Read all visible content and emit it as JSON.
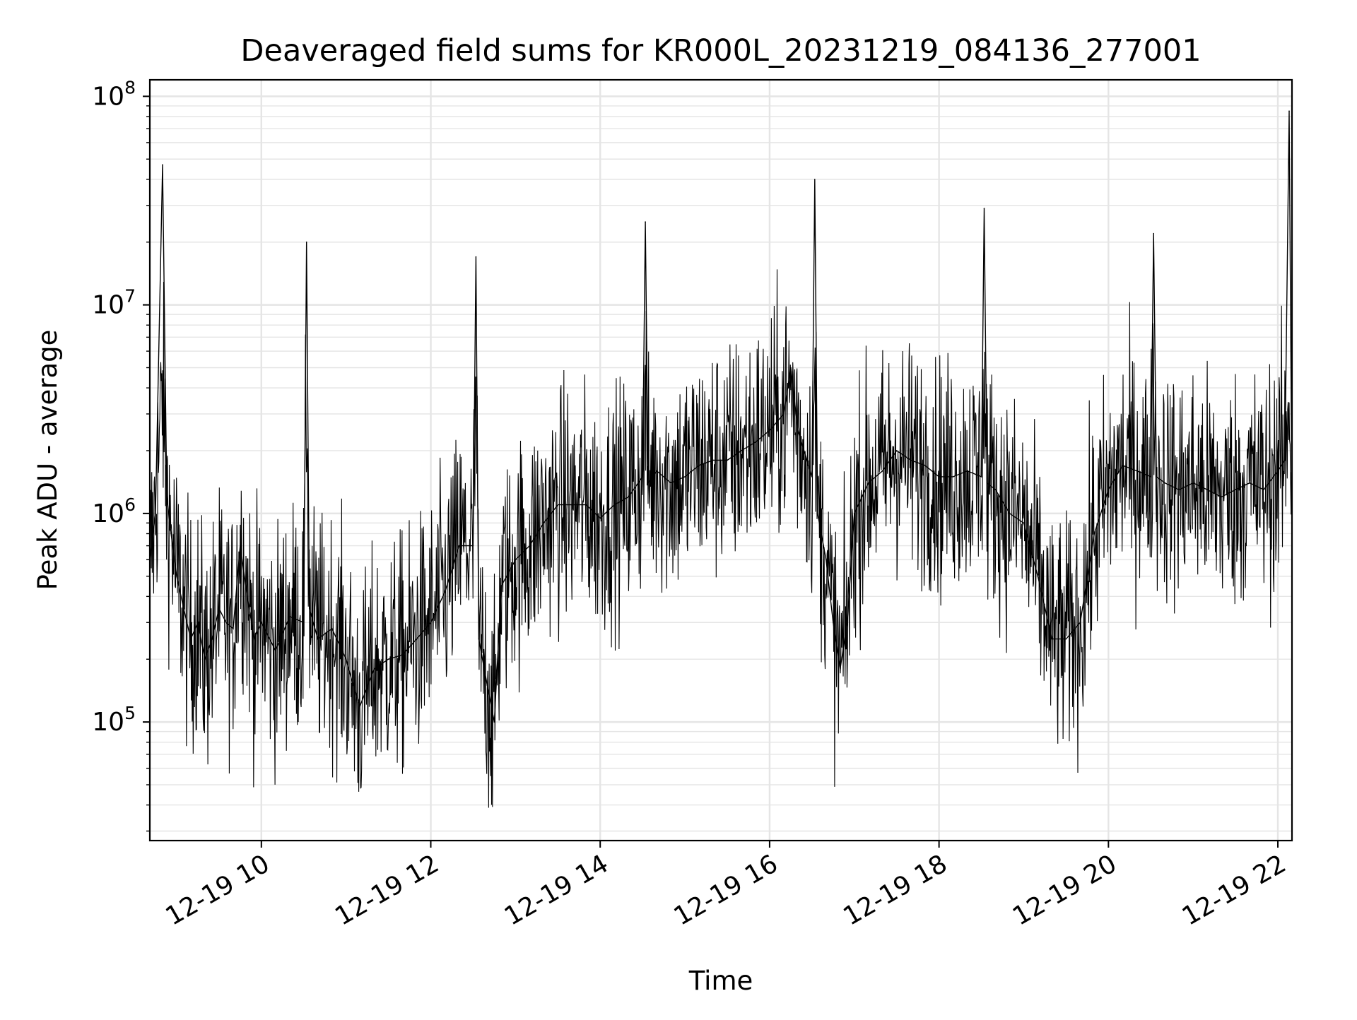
{
  "chart_data": {
    "type": "line",
    "title": "Deaveraged field sums for KR000L_20231219_084136_277001",
    "xlabel": "Time",
    "ylabel": "Peak ADU - average",
    "x_scale": "time",
    "y_scale": "log",
    "grid": true,
    "legend": "none",
    "xlim": [
      "2023-12-19 08:41",
      "2023-12-19 22:10"
    ],
    "ylim": [
      27000,
      120000000
    ],
    "x_ticks": [
      "2023-12-19 10:00",
      "2023-12-19 12:00",
      "2023-12-19 14:00",
      "2023-12-19 16:00",
      "2023-12-19 18:00",
      "2023-12-19 20:00",
      "2023-12-19 22:00"
    ],
    "x_tick_labels": [
      "12-19 10",
      "12-19 12",
      "12-19 14",
      "12-19 16",
      "12-19 18",
      "12-19 20",
      "12-19 22"
    ],
    "y_ticks": [
      100000,
      1000000,
      10000000,
      100000000
    ],
    "y_tick_labels": [
      {
        "base": "10",
        "exp": "5"
      },
      {
        "base": "10",
        "exp": "6"
      },
      {
        "base": "10",
        "exp": "7"
      },
      {
        "base": "10",
        "exp": "8"
      }
    ],
    "colors": {
      "line": "#000000",
      "grid": "#e5e5e5",
      "axes": "#000000"
    },
    "series": [
      {
        "x": [
          "2023-12-19 08:41",
          "2023-12-19 08:45",
          "2023-12-19 08:50",
          "2023-12-19 08:53",
          "2023-12-19 08:56",
          "2023-12-19 09:00",
          "2023-12-19 09:05",
          "2023-12-19 09:10",
          "2023-12-19 09:15",
          "2023-12-19 09:20",
          "2023-12-19 09:25",
          "2023-12-19 09:30",
          "2023-12-19 09:35",
          "2023-12-19 09:40",
          "2023-12-19 09:45",
          "2023-12-19 09:50",
          "2023-12-19 09:55",
          "2023-12-19 10:00",
          "2023-12-19 10:10",
          "2023-12-19 10:20",
          "2023-12-19 10:30",
          "2023-12-19 10:32",
          "2023-12-19 10:34",
          "2023-12-19 10:40",
          "2023-12-19 10:50",
          "2023-12-19 11:00",
          "2023-12-19 11:05",
          "2023-12-19 11:10",
          "2023-12-19 11:20",
          "2023-12-19 11:30",
          "2023-12-19 11:40",
          "2023-12-19 11:50",
          "2023-12-19 12:00",
          "2023-12-19 12:10",
          "2023-12-19 12:20",
          "2023-12-19 12:30",
          "2023-12-19 12:32",
          "2023-12-19 12:34",
          "2023-12-19 12:40",
          "2023-12-19 12:45",
          "2023-12-19 12:50",
          "2023-12-19 13:00",
          "2023-12-19 13:10",
          "2023-12-19 13:20",
          "2023-12-19 13:30",
          "2023-12-19 13:40",
          "2023-12-19 13:50",
          "2023-12-19 14:00",
          "2023-12-19 14:10",
          "2023-12-19 14:20",
          "2023-12-19 14:30",
          "2023-12-19 14:32",
          "2023-12-19 14:34",
          "2023-12-19 14:40",
          "2023-12-19 14:50",
          "2023-12-19 15:00",
          "2023-12-19 15:10",
          "2023-12-19 15:20",
          "2023-12-19 15:30",
          "2023-12-19 15:40",
          "2023-12-19 15:50",
          "2023-12-19 16:00",
          "2023-12-19 16:10",
          "2023-12-19 16:15",
          "2023-12-19 16:20",
          "2023-12-19 16:30",
          "2023-12-19 16:32",
          "2023-12-19 16:34",
          "2023-12-19 16:40",
          "2023-12-19 16:45",
          "2023-12-19 16:50",
          "2023-12-19 16:55",
          "2023-12-19 17:00",
          "2023-12-19 17:10",
          "2023-12-19 17:20",
          "2023-12-19 17:30",
          "2023-12-19 17:40",
          "2023-12-19 17:50",
          "2023-12-19 18:00",
          "2023-12-19 18:10",
          "2023-12-19 18:20",
          "2023-12-19 18:30",
          "2023-12-19 18:32",
          "2023-12-19 18:34",
          "2023-12-19 18:40",
          "2023-12-19 18:50",
          "2023-12-19 19:00",
          "2023-12-19 19:10",
          "2023-12-19 19:20",
          "2023-12-19 19:30",
          "2023-12-19 19:40",
          "2023-12-19 19:50",
          "2023-12-19 20:00",
          "2023-12-19 20:10",
          "2023-12-19 20:20",
          "2023-12-19 20:30",
          "2023-12-19 20:32",
          "2023-12-19 20:34",
          "2023-12-19 20:40",
          "2023-12-19 20:50",
          "2023-12-19 21:00",
          "2023-12-19 21:10",
          "2023-12-19 21:20",
          "2023-12-19 21:30",
          "2023-12-19 21:40",
          "2023-12-19 21:50",
          "2023-12-19 22:00",
          "2023-12-19 22:05",
          "2023-12-19 22:08",
          "2023-12-19 22:10"
        ],
        "y": [
          600000,
          1000000,
          47000000,
          1200000,
          800000,
          500000,
          350000,
          250000,
          300000,
          200000,
          250000,
          350000,
          300000,
          280000,
          700000,
          400000,
          250000,
          300000,
          220000,
          320000,
          300000,
          20000000,
          350000,
          250000,
          280000,
          200000,
          150000,
          120000,
          180000,
          200000,
          210000,
          250000,
          300000,
          420000,
          700000,
          700000,
          17000000,
          250000,
          150000,
          100000,
          450000,
          600000,
          700000,
          900000,
          1100000,
          1100000,
          1100000,
          950000,
          1100000,
          1200000,
          1500000,
          25000000,
          1400000,
          1600000,
          1400000,
          1500000,
          1700000,
          1800000,
          1800000,
          2000000,
          2200000,
          2500000,
          3000000,
          5000000,
          2500000,
          1500000,
          40000000,
          1000000,
          600000,
          300000,
          180000,
          300000,
          1000000,
          1400000,
          1600000,
          2000000,
          1800000,
          1700000,
          1500000,
          1500000,
          1600000,
          1500000,
          29000000,
          1400000,
          1300000,
          1000000,
          900000,
          500000,
          250000,
          250000,
          300000,
          800000,
          1300000,
          1700000,
          1600000,
          1500000,
          22000000,
          1500000,
          1400000,
          1300000,
          1400000,
          1300000,
          1200000,
          1300000,
          1400000,
          1300000,
          1600000,
          1800000,
          85000000,
          1000000
        ]
      }
    ]
  }
}
